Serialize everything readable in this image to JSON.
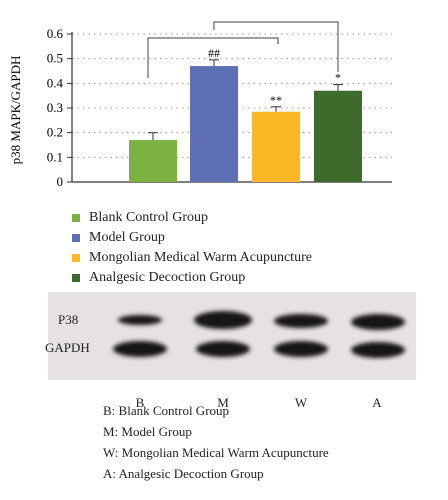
{
  "chart_data": {
    "type": "bar",
    "ylabel": "p38 MAPK/GAPDH",
    "ylim": [
      0,
      0.6
    ],
    "yticks": [
      "0",
      "0.1",
      "0.2",
      "0.3",
      "0.4",
      "0.5",
      "0.6"
    ],
    "grid": true,
    "categories": [
      "Blank Control Group",
      "Model Group",
      "Mongolian Medical Warm Acupuncture",
      "Analgesic Decoction Group"
    ],
    "values": [
      0.17,
      0.47,
      0.285,
      0.37
    ],
    "errors": [
      0.03,
      0.025,
      0.02,
      0.025
    ],
    "colors": [
      "#7bb241",
      "#5e6eb5",
      "#fbb826",
      "#3d6b2c"
    ],
    "annotations": [
      "",
      "##",
      "**",
      "*"
    ],
    "legend_position": "below"
  },
  "blot": {
    "row_labels": [
      "P38",
      "GAPDH"
    ],
    "lane_labels": [
      "B",
      "M",
      "W",
      "A"
    ]
  },
  "abbreviations": [
    "B: Blank Control Group",
    "M: Model Group",
    "W: Mongolian Medical Warm Acupuncture",
    "A: Analgesic Decoction Group"
  ]
}
